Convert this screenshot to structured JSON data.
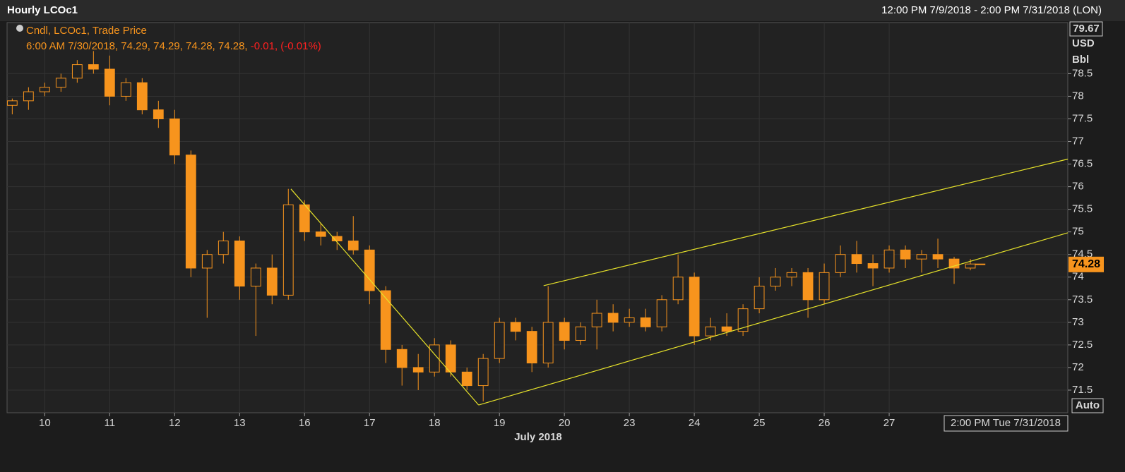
{
  "chart_data": {
    "type": "candlestick",
    "title": "Hourly LCOc1",
    "subtitle": "12:00 PM 7/9/2018 - 2:00 PM 7/31/2018 (LON)",
    "legend": "Cndl, LCOc1, Trade Price",
    "info_label": "6:00 AM 7/30/2018, 74.29, 74.29, 74.28, 74.28, ",
    "change_label": "-0.01, (-0.01%)",
    "x_label": "July 2018",
    "y_units": [
      "USD",
      "Bbl"
    ],
    "top_value": 79.67,
    "last_price": 74.28,
    "scale_mode": "Auto",
    "cursor_label": "2:00 PM Tue 7/31/2018",
    "color": "#f7941d",
    "trendline_color": "#e6e22a",
    "grid": true,
    "xlim": [
      -0.58,
      15.75
    ],
    "xticks": [
      {
        "value": 0,
        "label": "10"
      },
      {
        "value": 1,
        "label": "11"
      },
      {
        "value": 2,
        "label": "12"
      },
      {
        "value": 3,
        "label": "13"
      },
      {
        "value": 4,
        "label": "16"
      },
      {
        "value": 5,
        "label": "17"
      },
      {
        "value": 6,
        "label": "18"
      },
      {
        "value": 7,
        "label": "19"
      },
      {
        "value": 8,
        "label": "20"
      },
      {
        "value": 9,
        "label": "23"
      },
      {
        "value": 10,
        "label": "24"
      },
      {
        "value": 11,
        "label": "25"
      },
      {
        "value": 12,
        "label": "26"
      },
      {
        "value": 13,
        "label": "27"
      }
    ],
    "ylim": [
      71,
      79.63
    ],
    "yticks": [
      71.5,
      72,
      72.5,
      73,
      73.5,
      74,
      74.5,
      75,
      75.5,
      76,
      76.5,
      77,
      77.5,
      78,
      78.5
    ],
    "x": [
      -0.5,
      -0.25,
      0,
      0.25,
      0.5,
      0.75,
      1,
      1.25,
      1.5,
      1.75,
      2,
      2.25,
      2.5,
      2.75,
      3,
      3.25,
      3.5,
      3.75,
      4,
      4.25,
      4.5,
      4.75,
      5,
      5.25,
      5.5,
      5.75,
      6,
      6.25,
      6.5,
      6.75,
      7,
      7.25,
      7.5,
      7.75,
      8,
      8.25,
      8.5,
      8.75,
      9,
      9.25,
      9.5,
      9.75,
      10,
      10.25,
      10.5,
      10.75,
      11,
      11.25,
      11.5,
      11.75,
      12,
      12.25,
      12.5,
      12.75,
      13,
      13.25,
      13.5,
      13.75,
      14,
      14.25,
      14.4
    ],
    "open": [
      77.8,
      77.9,
      78.1,
      78.2,
      78.4,
      78.7,
      78.6,
      78.0,
      78.3,
      77.7,
      77.5,
      76.7,
      74.2,
      74.5,
      74.8,
      73.8,
      74.2,
      73.6,
      75.6,
      75.0,
      74.9,
      74.8,
      74.6,
      73.7,
      72.4,
      72.0,
      71.9,
      72.5,
      71.9,
      71.6,
      72.2,
      73.0,
      72.8,
      72.1,
      73.0,
      72.6,
      72.9,
      73.2,
      73.0,
      73.1,
      72.9,
      73.5,
      74.0,
      72.7,
      72.9,
      72.8,
      73.3,
      73.8,
      74.0,
      74.1,
      73.5,
      74.1,
      74.5,
      74.3,
      74.2,
      74.6,
      74.4,
      74.5,
      74.4,
      74.2,
      74.29
    ],
    "high": [
      77.95,
      78.2,
      78.3,
      78.5,
      78.8,
      79.0,
      78.9,
      78.4,
      78.4,
      77.9,
      77.7,
      76.8,
      74.6,
      75.0,
      74.9,
      74.3,
      74.5,
      75.95,
      75.7,
      75.2,
      75.0,
      75.35,
      74.7,
      73.8,
      72.5,
      72.3,
      72.65,
      72.6,
      72.0,
      72.3,
      73.1,
      73.1,
      72.9,
      73.8,
      73.1,
      73.0,
      73.5,
      73.4,
      73.3,
      73.3,
      73.6,
      74.5,
      74.1,
      73.1,
      73.2,
      73.4,
      74.0,
      74.2,
      74.2,
      74.2,
      74.3,
      74.7,
      74.8,
      74.5,
      74.7,
      74.7,
      74.6,
      74.85,
      74.45,
      74.4,
      74.29
    ],
    "low": [
      77.6,
      77.7,
      78.0,
      78.1,
      78.3,
      78.5,
      77.8,
      77.9,
      77.6,
      77.3,
      76.5,
      74.0,
      73.1,
      74.3,
      73.5,
      72.7,
      73.4,
      73.5,
      74.8,
      74.7,
      74.6,
      74.5,
      73.4,
      72.1,
      71.6,
      71.5,
      71.8,
      71.8,
      71.5,
      71.25,
      72.1,
      72.6,
      71.9,
      72.0,
      72.4,
      72.5,
      72.4,
      72.8,
      72.9,
      72.8,
      72.8,
      73.4,
      72.5,
      72.6,
      72.7,
      72.7,
      73.2,
      73.7,
      73.8,
      73.1,
      73.4,
      74.0,
      74.1,
      73.8,
      74.1,
      74.2,
      74.1,
      74.2,
      73.85,
      74.15,
      74.28
    ],
    "close": [
      77.9,
      78.1,
      78.2,
      78.4,
      78.7,
      78.6,
      78.0,
      78.3,
      77.7,
      77.5,
      76.7,
      74.2,
      74.5,
      74.8,
      73.8,
      74.2,
      73.6,
      75.6,
      75.0,
      74.9,
      74.8,
      74.6,
      73.7,
      72.4,
      72.0,
      71.9,
      72.5,
      71.9,
      71.6,
      72.2,
      73.0,
      72.8,
      72.1,
      73.0,
      72.6,
      72.9,
      73.2,
      73.0,
      73.1,
      72.9,
      73.5,
      74.0,
      72.7,
      72.9,
      72.8,
      73.3,
      73.8,
      74.0,
      74.1,
      73.5,
      74.1,
      74.5,
      74.3,
      74.2,
      74.6,
      74.4,
      74.5,
      74.4,
      74.2,
      74.29,
      74.28
    ],
    "trendlines": [
      {
        "x": [
          3.79,
          6.68
        ],
        "y": [
          75.95,
          71.17
        ]
      },
      {
        "x": [
          6.68,
          15.75
        ],
        "y": [
          71.17,
          74.98
        ]
      },
      {
        "x": [
          7.68,
          15.75
        ],
        "y": [
          73.81,
          76.61
        ]
      }
    ]
  }
}
